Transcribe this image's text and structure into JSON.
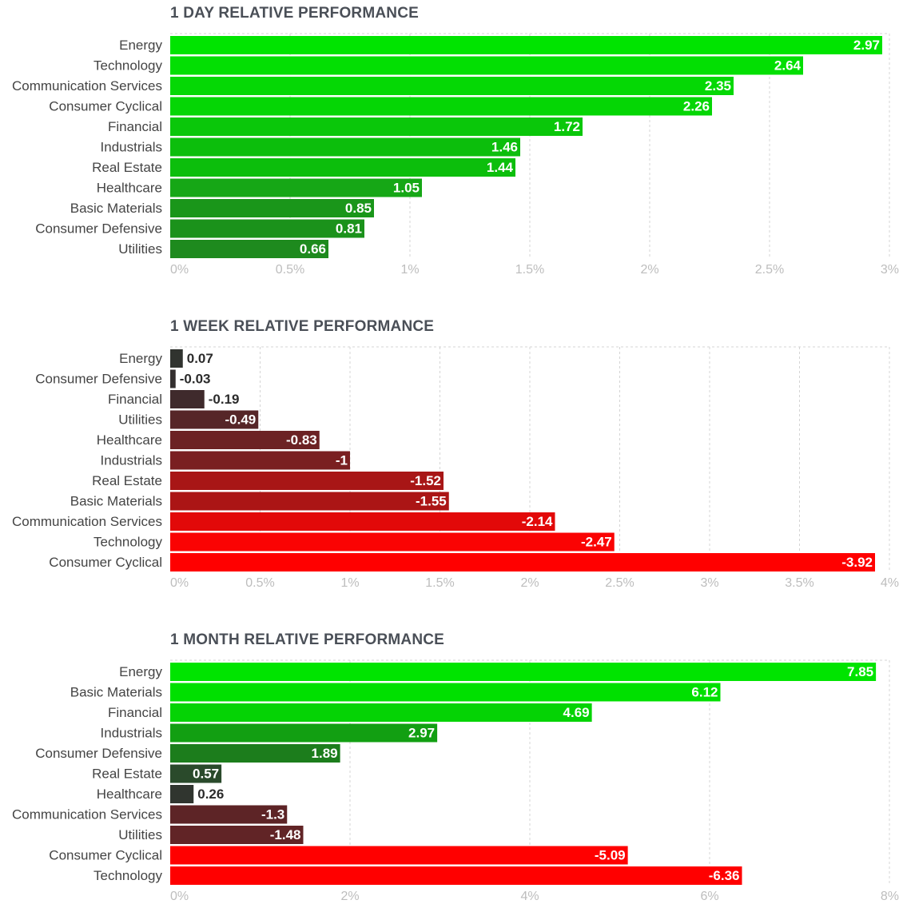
{
  "chart_data": [
    {
      "type": "bar",
      "orientation": "horizontal",
      "title": "1 DAY RELATIVE PERFORMANCE",
      "categories": [
        "Energy",
        "Technology",
        "Communication Services",
        "Consumer Cyclical",
        "Financial",
        "Industrials",
        "Real Estate",
        "Healthcare",
        "Basic Materials",
        "Consumer Defensive",
        "Utilities"
      ],
      "values": [
        2.97,
        2.64,
        2.35,
        2.26,
        1.72,
        1.46,
        1.44,
        1.05,
        0.85,
        0.81,
        0.66
      ],
      "value_labels": [
        "2.97",
        "2.64",
        "2.35",
        "2.26",
        "1.72",
        "1.46",
        "1.44",
        "1.05",
        "0.85",
        "0.81",
        "0.66"
      ],
      "bar_colors": [
        "#00e400",
        "#03df03",
        "#05d805",
        "#05d605",
        "#0ac70a",
        "#0cbe0c",
        "#0cbe0c",
        "#16a716",
        "#1a961a",
        "#1b921b",
        "#1e8a1e"
      ],
      "xlim": [
        0,
        3
      ],
      "ticks": [
        0,
        0.5,
        1,
        1.5,
        2,
        2.5,
        3
      ],
      "tick_labels": [
        "0%",
        "0.5%",
        "1%",
        "1.5%",
        "2%",
        "2.5%",
        "3%"
      ],
      "xlabel": "",
      "ylabel": "",
      "grid": true
    },
    {
      "type": "bar",
      "orientation": "horizontal",
      "title": "1 WEEK RELATIVE PERFORMANCE",
      "categories": [
        "Energy",
        "Consumer Defensive",
        "Financial",
        "Utilities",
        "Healthcare",
        "Industrials",
        "Real Estate",
        "Basic Materials",
        "Communication Services",
        "Technology",
        "Consumer Cyclical"
      ],
      "values": [
        0.07,
        -0.03,
        -0.19,
        -0.49,
        -0.83,
        -1,
        -1.52,
        -1.55,
        -2.14,
        -2.47,
        -3.92
      ],
      "value_labels": [
        "0.07",
        "-0.03",
        "-0.19",
        "-0.49",
        "-0.83",
        "-1",
        "-1.52",
        "-1.55",
        "-2.14",
        "-2.47",
        "-3.92"
      ],
      "bar_colors": [
        "#30332f",
        "#332f2f",
        "#3f2a2c",
        "#562628",
        "#6c2224",
        "#7a1f21",
        "#a81616",
        "#ab1515",
        "#e20909",
        "#fa0303",
        "#ff0000"
      ],
      "xlim": [
        0,
        4
      ],
      "ticks": [
        0,
        0.5,
        1,
        1.5,
        2,
        2.5,
        3,
        3.5,
        4
      ],
      "tick_labels": [
        "0%",
        "0.5%",
        "1%",
        "1.5%",
        "2%",
        "2.5%",
        "3%",
        "3.5%",
        "4%"
      ],
      "xlabel": "",
      "ylabel": "",
      "grid": true
    },
    {
      "type": "bar",
      "orientation": "horizontal",
      "title": "1 MONTH RELATIVE PERFORMANCE",
      "categories": [
        "Energy",
        "Basic Materials",
        "Financial",
        "Industrials",
        "Consumer Defensive",
        "Real Estate",
        "Healthcare",
        "Communication Services",
        "Utilities",
        "Consumer Cyclical",
        "Technology"
      ],
      "values": [
        7.85,
        6.12,
        4.69,
        2.97,
        1.89,
        0.57,
        0.26,
        -1.3,
        -1.48,
        -5.09,
        -6.36
      ],
      "value_labels": [
        "7.85",
        "6.12",
        "4.69",
        "2.97",
        "1.89",
        "0.57",
        "0.26",
        "-1.3",
        "-1.48",
        "-5.09",
        "-6.36"
      ],
      "bar_colors": [
        "#00e400",
        "#00e000",
        "#05d305",
        "#129f12",
        "#1c7d1c",
        "#2a4a2b",
        "#30352f",
        "#5d2426",
        "#612426",
        "#ff0000",
        "#ff0000"
      ],
      "xlim": [
        0,
        8
      ],
      "ticks": [
        0,
        2,
        4,
        6,
        8
      ],
      "tick_labels": [
        "0%",
        "2%",
        "4%",
        "6%",
        "8%"
      ],
      "xlabel": "",
      "ylabel": "",
      "grid": true
    }
  ]
}
